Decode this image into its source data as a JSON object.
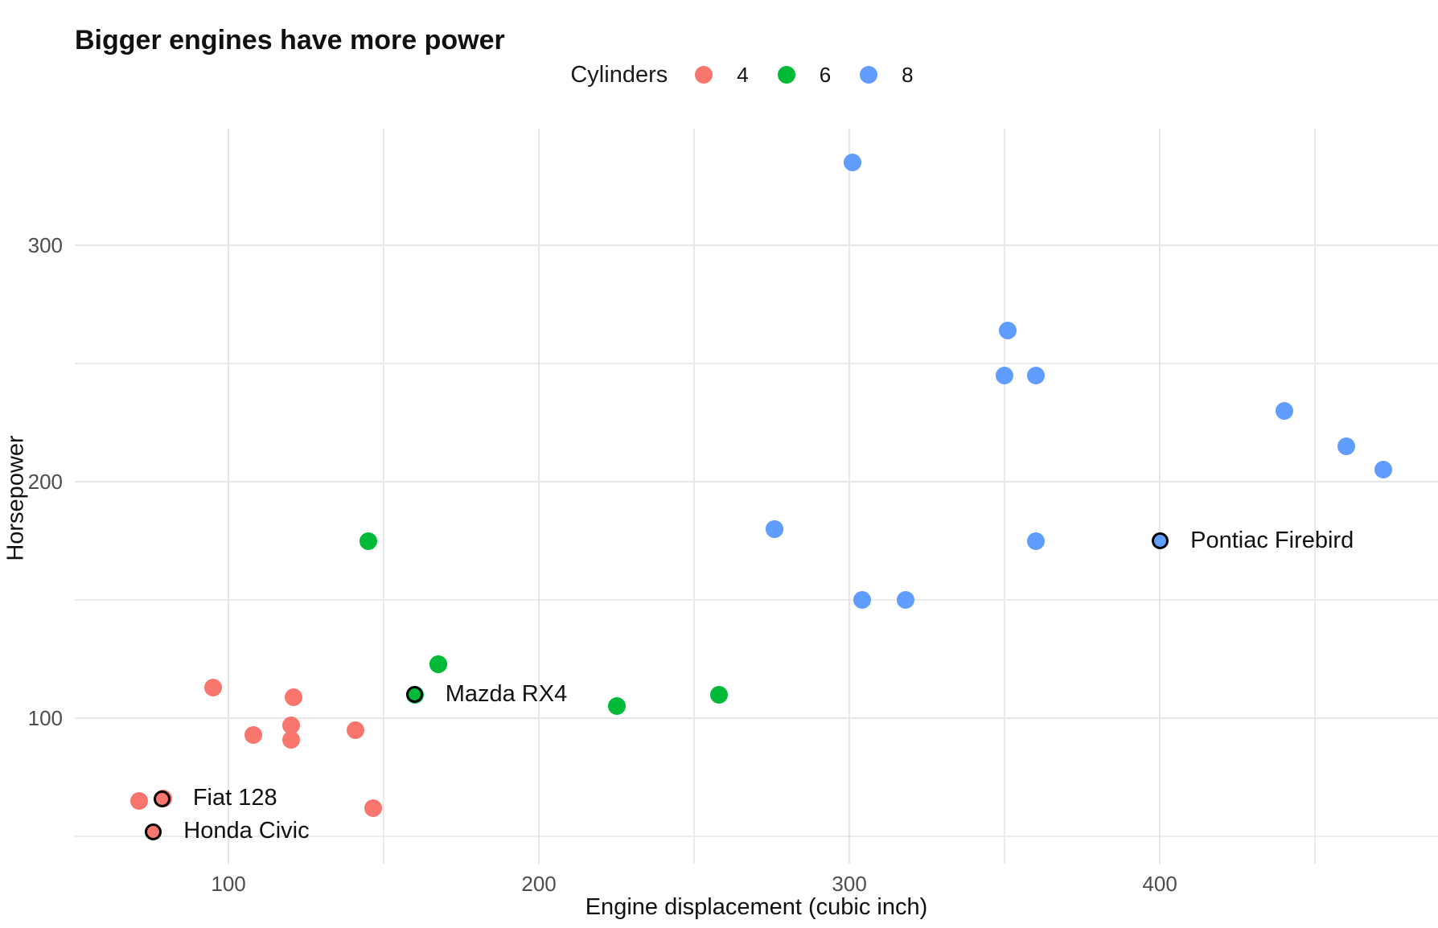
{
  "chart_data": {
    "type": "scatter",
    "title": "Bigger engines have more power",
    "xlabel": "Engine displacement (cubic inch)",
    "ylabel": "Horsepower",
    "grid": true,
    "legend": {
      "title": "Cylinders",
      "position": "top-center",
      "entries": [
        {
          "label": "4",
          "color": "#F8766D"
        },
        {
          "label": "6",
          "color": "#00BA38"
        },
        {
          "label": "8",
          "color": "#619CFF"
        }
      ]
    },
    "xlim": [
      50.5,
      489.6
    ],
    "ylim": [
      38.5,
      349.3
    ],
    "x_major_ticks": [
      100,
      200,
      300,
      400
    ],
    "x_minor_ticks": [
      150,
      250,
      350,
      450
    ],
    "y_major_ticks": [
      100,
      200,
      300
    ],
    "y_minor_ticks": [
      50,
      150,
      250
    ],
    "series": [
      {
        "name": "4",
        "color": "#F8766D",
        "points": [
          [
            108,
            93
          ],
          [
            146.7,
            62
          ],
          [
            140.8,
            95
          ],
          [
            71.1,
            65
          ],
          [
            120.1,
            97
          ],
          [
            79,
            66
          ],
          [
            120.3,
            91
          ],
          [
            95.1,
            113
          ],
          [
            121,
            109
          ]
        ]
      },
      {
        "name": "6",
        "color": "#00BA38",
        "points": [
          [
            160,
            110
          ],
          [
            258,
            110
          ],
          [
            225,
            105
          ],
          [
            167.6,
            123
          ],
          [
            167.6,
            123
          ],
          [
            145,
            175
          ]
        ]
      },
      {
        "name": "8",
        "color": "#619CFF",
        "points": [
          [
            360,
            175
          ],
          [
            360,
            245
          ],
          [
            275.8,
            180
          ],
          [
            275.8,
            180
          ],
          [
            275.8,
            180
          ],
          [
            472,
            205
          ],
          [
            460,
            215
          ],
          [
            440,
            230
          ],
          [
            318,
            150
          ],
          [
            304,
            150
          ],
          [
            350,
            245
          ],
          [
            351,
            264
          ],
          [
            301,
            335
          ]
        ]
      }
    ],
    "annotations": [
      {
        "label": "Mazda RX4",
        "x": 160,
        "y": 110,
        "series": "6"
      },
      {
        "label": "Pontiac Firebird",
        "x": 400,
        "y": 175,
        "series": "8"
      },
      {
        "label": "Fiat 128",
        "x": 78.7,
        "y": 66,
        "series": "4"
      },
      {
        "label": "Honda Civic",
        "x": 75.7,
        "y": 52,
        "series": "4"
      }
    ]
  }
}
